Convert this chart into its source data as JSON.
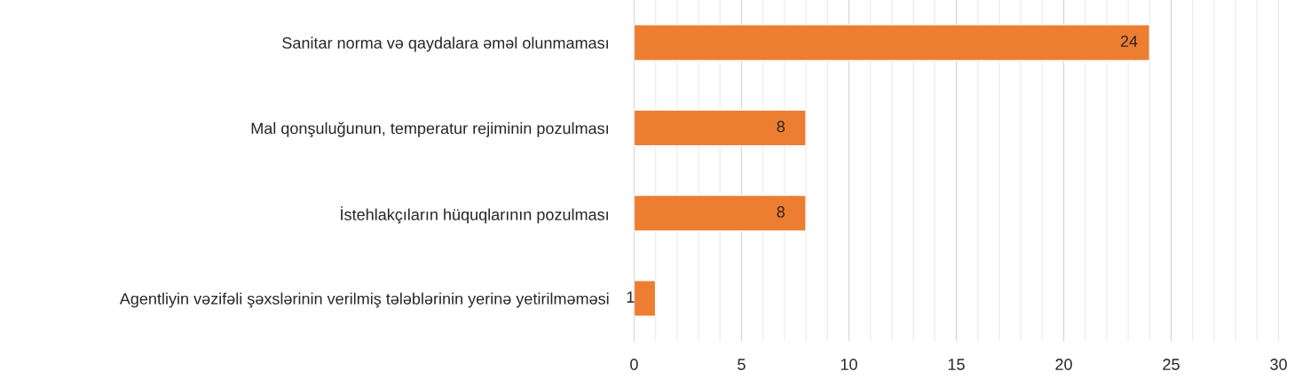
{
  "chart_data": {
    "type": "bar",
    "orientation": "horizontal",
    "categories": [
      "Sanitar norma və qaydalara əməl olunmaması",
      "Mal qonşuluğunun, temperatur rejiminin pozulması",
      "İstehlakçıların hüquqlarının pozulması",
      "Agentliyin vəzifəli şəxslərinin verilmiş tələblərinin yerinə yetirilməməsi"
    ],
    "values": [
      24,
      8,
      8,
      1
    ],
    "color": "#ed7d31",
    "data_labels": true,
    "xlim": [
      0,
      30
    ],
    "xticks": [
      0,
      {
        "value": 1,
        "label": null
      },
      {
        "value": 2,
        "label": null
      },
      {
        "value": 3,
        "label": null
      },
      {
        "value": 4,
        "label": null
      },
      5,
      {
        "value": 6,
        "label": null
      },
      {
        "value": 7,
        "label": null
      },
      {
        "value": 8,
        "label": null
      },
      {
        "value": 9,
        "label": null
      },
      10,
      {
        "value": 11,
        "label": null
      },
      {
        "value": 12,
        "label": null
      },
      {
        "value": 13,
        "label": null
      },
      {
        "value": 14,
        "label": null
      },
      15,
      {
        "value": 16,
        "label": null
      },
      {
        "value": 17,
        "label": null
      },
      {
        "value": 18,
        "label": null
      },
      {
        "value": 19,
        "label": null
      },
      20,
      {
        "value": 21,
        "label": null
      },
      {
        "value": 22,
        "label": null
      },
      {
        "value": 23,
        "label": null
      },
      {
        "value": 24,
        "label": null
      },
      25,
      {
        "value": 26,
        "label": null
      },
      {
        "value": 27,
        "label": null
      },
      {
        "value": 28,
        "label": null
      },
      {
        "value": 29,
        "label": null
      },
      30
    ],
    "grid": "x"
  }
}
